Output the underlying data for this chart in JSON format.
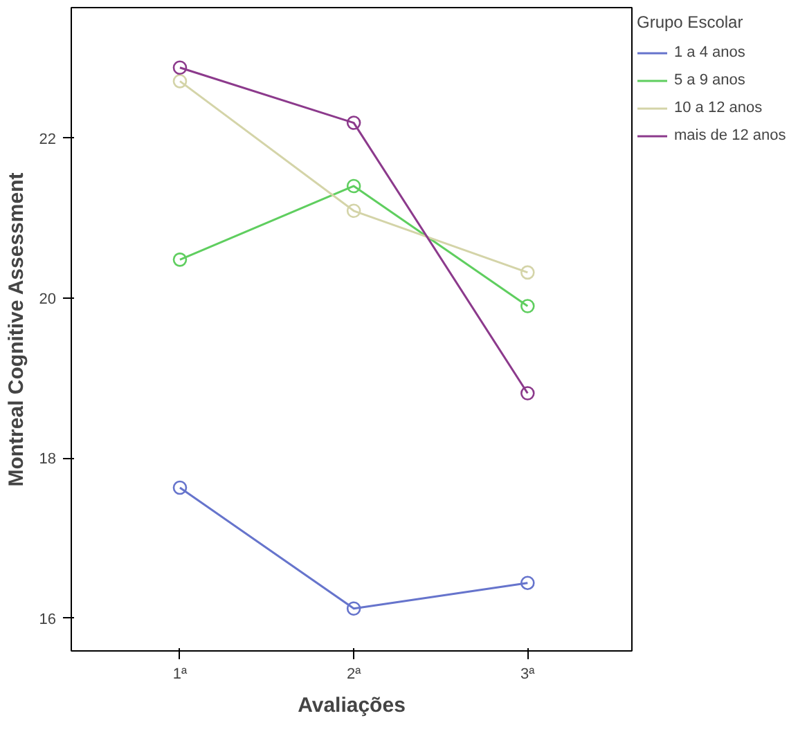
{
  "chart_data": {
    "type": "line",
    "xlabel": "Avaliações",
    "ylabel": "Montreal Cognitive Assessment",
    "legend_title": "Grupo Escolar",
    "categories": [
      "1ª",
      "2ª",
      "3ª"
    ],
    "ylim": [
      15.59,
      23.63
    ],
    "yticks": [
      16,
      18,
      20,
      22
    ],
    "series": [
      {
        "name": "1 a 4 anos",
        "color": "#6674cc",
        "values": [
          17.63,
          16.12,
          16.44
        ]
      },
      {
        "name": "5 a 9 anos",
        "color": "#5fce5f",
        "values": [
          20.48,
          21.4,
          19.9
        ]
      },
      {
        "name": "10 a 12 anos",
        "color": "#d4d4a8",
        "values": [
          22.71,
          21.09,
          20.32
        ]
      },
      {
        "name": "mais de 12 anos",
        "color": "#8c3a8c",
        "values": [
          22.88,
          22.19,
          18.81
        ]
      }
    ],
    "marker": "circle",
    "legend": "right",
    "grid": false
  }
}
